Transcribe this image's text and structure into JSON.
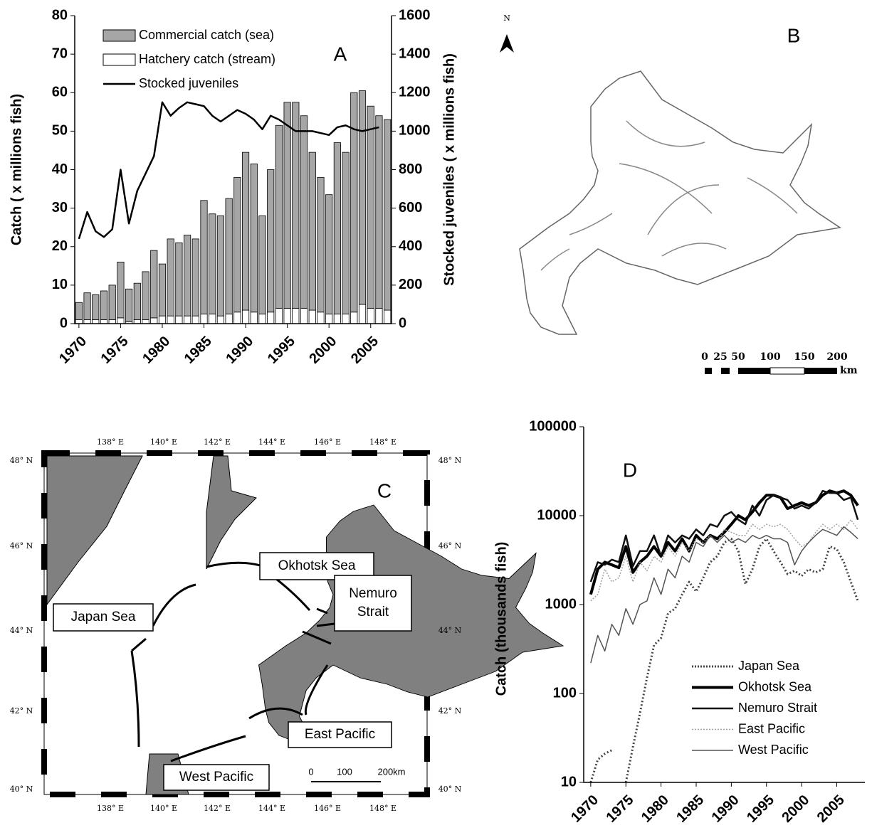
{
  "chart_data": [
    {
      "type": "bar",
      "stacked": true,
      "annotation": "A",
      "y_label": "Catch  ( x millions fish)",
      "y2_label": "Stocked juveniles ( x millions fish)",
      "x": [
        1970,
        1971,
        1972,
        1973,
        1974,
        1975,
        1976,
        1977,
        1978,
        1979,
        1980,
        1981,
        1982,
        1983,
        1984,
        1985,
        1986,
        1987,
        1988,
        1989,
        1990,
        1991,
        1992,
        1993,
        1994,
        1995,
        1996,
        1997,
        1998,
        1999,
        2000,
        2001,
        2002,
        2003,
        2004,
        2005,
        2006,
        2007
      ],
      "xlim": [
        1969.5,
        2007.5
      ],
      "xticks": [
        1970,
        1975,
        1980,
        1985,
        1990,
        1995,
        2000,
        2005
      ],
      "ylim": [
        0,
        80
      ],
      "yticks": [
        0,
        10,
        20,
        30,
        40,
        50,
        60,
        70,
        80
      ],
      "y2lim": [
        0,
        1600
      ],
      "y2ticks": [
        0,
        200,
        400,
        600,
        800,
        1000,
        1200,
        1400,
        1600
      ],
      "series": [
        {
          "name": "Commercial catch (sea)",
          "type": "bar",
          "color": "#a6a6a6",
          "values": [
            4.5,
            7,
            6.5,
            7.5,
            9,
            14.5,
            8.5,
            9.5,
            12.5,
            17.5,
            13.5,
            20,
            19,
            21,
            20,
            29.5,
            26,
            26,
            30,
            35,
            41,
            38.5,
            25.5,
            37,
            47.5,
            53.5,
            53.5,
            50,
            41,
            35,
            31,
            44.5,
            42,
            57,
            55.5,
            52.5,
            50,
            49.5
          ]
        },
        {
          "name": "Hatchery catch (stream)",
          "type": "bar",
          "color": "#ffffff",
          "values": [
            1,
            1,
            1,
            1,
            1,
            1.5,
            0.5,
            1,
            1,
            1.5,
            2,
            2,
            2,
            2,
            2,
            2.5,
            2.5,
            2,
            2.5,
            3,
            3.5,
            3,
            2.5,
            3,
            4,
            4,
            4,
            4,
            3.5,
            3,
            2.5,
            2.5,
            2.5,
            3,
            5,
            4,
            4,
            3.5
          ]
        },
        {
          "name": "Stocked juveniles",
          "type": "line",
          "axis": "y2",
          "color": "#000000",
          "values": [
            440,
            580,
            480,
            450,
            490,
            800,
            520,
            690,
            780,
            870,
            1150,
            1080,
            1120,
            1150,
            1140,
            1130,
            1080,
            1050,
            1080,
            1110,
            1090,
            1060,
            1010,
            1080,
            1060,
            1030,
            1000,
            1000,
            1000,
            990,
            980,
            1020,
            1030,
            1010,
            1000,
            1010,
            1020,
            null
          ]
        }
      ]
    },
    {
      "type": "line",
      "log_scale": true,
      "annotation": "D",
      "y_label": "Catch  (thousands fish)",
      "x": [
        1970,
        1971,
        1972,
        1973,
        1974,
        1975,
        1976,
        1977,
        1978,
        1979,
        1980,
        1981,
        1982,
        1983,
        1984,
        1985,
        1986,
        1987,
        1988,
        1989,
        1990,
        1991,
        1992,
        1993,
        1994,
        1995,
        1996,
        1997,
        1998,
        1999,
        2000,
        2001,
        2002,
        2003,
        2004,
        2005,
        2006,
        2007,
        2008
      ],
      "xlim": [
        1969,
        2009
      ],
      "xticks": [
        1970,
        1975,
        1980,
        1985,
        1990,
        1995,
        2000,
        2005
      ],
      "ylim": [
        10,
        100000
      ],
      "yticks": [
        10,
        100,
        1000,
        10000,
        100000
      ],
      "series": [
        {
          "name": "Japan Sea",
          "color": "#444444",
          "dash": "dotted",
          "width": 3,
          "values": [
            10,
            18,
            21,
            23,
            null,
            10,
            25,
            60,
            150,
            350,
            420,
            800,
            900,
            1300,
            1800,
            1400,
            2000,
            3000,
            3500,
            5000,
            5500,
            4000,
            1700,
            2500,
            4500,
            5500,
            4000,
            3000,
            2200,
            2400,
            2100,
            2500,
            2300,
            2500,
            4500,
            4200,
            3000,
            1800,
            1100
          ]
        },
        {
          "name": "Okhotsk Sea",
          "color": "#000000",
          "dash": "solid",
          "width": 4,
          "values": [
            1300,
            2500,
            3000,
            2800,
            2600,
            4500,
            2300,
            3000,
            3500,
            4500,
            3500,
            5000,
            4000,
            5500,
            4000,
            6000,
            5000,
            6000,
            5500,
            6500,
            8000,
            10000,
            9000,
            11000,
            14000,
            17000,
            17000,
            16000,
            12000,
            13000,
            14000,
            13000,
            14000,
            17000,
            19000,
            18000,
            19000,
            17000,
            13000
          ]
        },
        {
          "name": "Nemuro Strait",
          "color": "#111111",
          "dash": "solid",
          "width": 2.5,
          "values": [
            1800,
            3000,
            2800,
            3200,
            3000,
            6000,
            2700,
            4000,
            4000,
            6000,
            3500,
            6000,
            5000,
            6000,
            5500,
            7000,
            6000,
            8000,
            7500,
            10000,
            11000,
            9000,
            8000,
            13000,
            10000,
            15000,
            17000,
            16000,
            15000,
            12000,
            13000,
            12000,
            14000,
            19000,
            18000,
            18000,
            15000,
            16000,
            9000
          ]
        },
        {
          "name": "East Pacific",
          "color": "#a0a0a0",
          "dash": "dotted",
          "width": 1.5,
          "values": [
            1100,
            1300,
            2500,
            1800,
            2000,
            3500,
            1800,
            3000,
            2400,
            3500,
            3000,
            4500,
            3500,
            5000,
            4000,
            5500,
            5000,
            6000,
            5000,
            7000,
            6500,
            6000,
            6000,
            8000,
            7000,
            8000,
            7500,
            8000,
            7000,
            5500,
            4500,
            5000,
            6500,
            8000,
            7000,
            8000,
            7000,
            9000,
            7000
          ]
        },
        {
          "name": "West Pacific",
          "color": "#555555",
          "dash": "solid",
          "width": 1.5,
          "values": [
            220,
            450,
            300,
            600,
            450,
            900,
            600,
            1000,
            1100,
            2000,
            1300,
            2500,
            2000,
            3500,
            3000,
            5000,
            4500,
            6000,
            5000,
            6000,
            5000,
            5500,
            5000,
            6000,
            5500,
            6000,
            5500,
            5500,
            5000,
            2800,
            4000,
            5000,
            6000,
            7000,
            6500,
            6000,
            7500,
            6500,
            5500
          ]
        }
      ]
    }
  ],
  "map_b": {
    "label": "B",
    "north": "N",
    "scale_labels": [
      "0",
      "25",
      "50",
      "100",
      "150",
      "200"
    ],
    "scale_unit": "km"
  },
  "map_c": {
    "label": "C",
    "lon_labels": [
      "138° E",
      "140° E",
      "142° E",
      "144° E",
      "146° E",
      "148° E"
    ],
    "lat_labels": [
      "48° N",
      "46° N",
      "44° N",
      "42° N",
      "40° N"
    ],
    "regions": [
      [
        "Okhotsk Sea"
      ],
      [
        "Nemuro",
        "Strait"
      ],
      [
        "Japan  Sea"
      ],
      [
        "East Pacific"
      ],
      [
        "West Pacific"
      ]
    ],
    "scale_labels": [
      "0",
      "100",
      "200km"
    ]
  }
}
